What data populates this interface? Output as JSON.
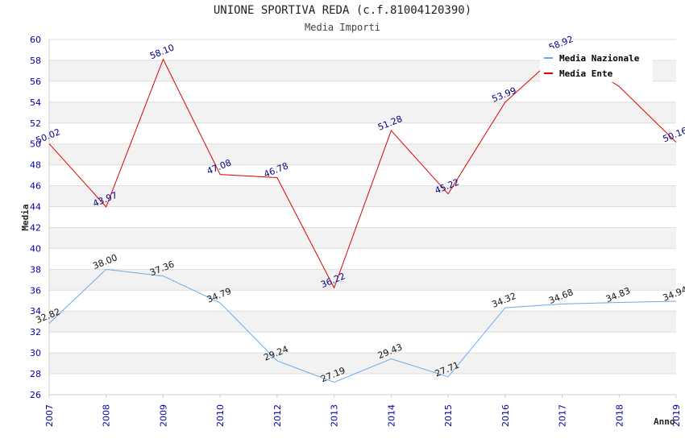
{
  "chart_data": {
    "type": "line",
    "title": "UNIONE SPORTIVA REDA (c.f.81004120390)",
    "subtitle": "Media Importi",
    "xlabel": "Anno",
    "ylabel": "Media",
    "ylim": [
      26,
      60
    ],
    "ytick_step": 2,
    "grid": true,
    "legend_position": "top-right",
    "categories": [
      "2007",
      "2008",
      "2009",
      "2010",
      "2012",
      "2013",
      "2014",
      "2015",
      "2016",
      "2017",
      "2018",
      "2019"
    ],
    "series": [
      {
        "name": "Media Nazionale",
        "color": "#66aaee",
        "label_color": "#111111",
        "values": [
          32.82,
          38.0,
          37.36,
          34.79,
          29.24,
          27.19,
          29.43,
          27.71,
          34.32,
          34.68,
          34.83,
          34.94
        ],
        "labels": [
          "32.82",
          "38.00",
          "37.36",
          "34.79",
          "29.24",
          "27.19",
          "29.43",
          "27.71",
          "34.32",
          "34.68",
          "34.83",
          "34.94"
        ]
      },
      {
        "name": "Media Ente",
        "color": "#dd0000",
        "label_color": "#000080",
        "values": [
          50.02,
          43.97,
          58.1,
          47.08,
          46.78,
          36.22,
          51.28,
          45.22,
          53.99,
          58.92,
          55.5,
          50.16
        ],
        "labels": [
          "50.02",
          "43.97",
          "58.10",
          "47.08",
          "46.78",
          "36.22",
          "51.28",
          "45.22",
          "53.99",
          "58.92",
          "",
          "50.16"
        ]
      }
    ]
  }
}
